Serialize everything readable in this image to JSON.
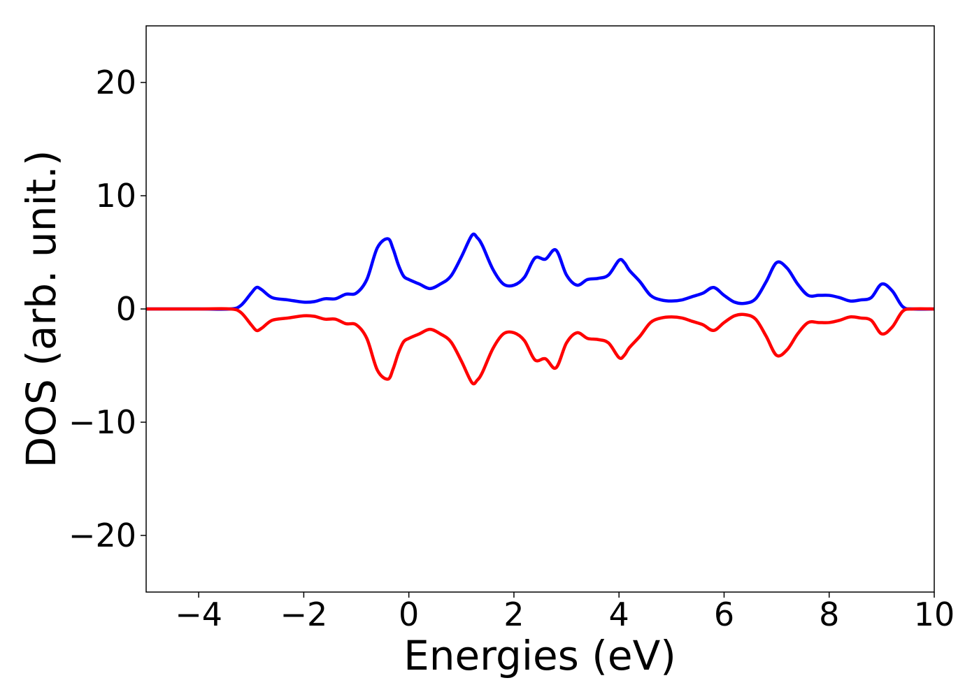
{
  "chart_data": {
    "type": "line",
    "title": "",
    "xlabel": "Energies (eV)",
    "ylabel": "DOS (arb. unit.)",
    "xlim": [
      -5,
      10
    ],
    "ylim": [
      -25,
      25
    ],
    "xticks": [
      -4,
      -2,
      0,
      2,
      4,
      6,
      8,
      10
    ],
    "xtick_labels": [
      "−4",
      "−2",
      "0",
      "2",
      "4",
      "6",
      "8",
      "10"
    ],
    "yticks": [
      -20,
      -10,
      0,
      10,
      20
    ],
    "ytick_labels": [
      "−20",
      "−10",
      "0",
      "10",
      "20"
    ],
    "grid": false,
    "legend": "none",
    "x": [
      -5.0,
      -4.0,
      -3.4,
      -3.2,
      -3.0,
      -2.9,
      -2.8,
      -2.6,
      -2.3,
      -2.0,
      -1.8,
      -1.6,
      -1.4,
      -1.2,
      -1.0,
      -0.8,
      -0.6,
      -0.4,
      -0.3,
      -0.2,
      -0.1,
      0.0,
      0.2,
      0.4,
      0.6,
      0.8,
      1.0,
      1.2,
      1.3,
      1.4,
      1.6,
      1.8,
      2.0,
      2.2,
      2.4,
      2.6,
      2.8,
      3.0,
      3.2,
      3.4,
      3.6,
      3.8,
      4.0,
      4.1,
      4.2,
      4.4,
      4.6,
      4.8,
      5.0,
      5.2,
      5.4,
      5.6,
      5.8,
      6.0,
      6.2,
      6.4,
      6.6,
      6.8,
      7.0,
      7.2,
      7.4,
      7.6,
      7.8,
      8.0,
      8.2,
      8.4,
      8.6,
      8.8,
      9.0,
      9.2,
      9.4,
      9.6,
      10.0
    ],
    "series": [
      {
        "color": "#0000ff",
        "values": [
          0.0,
          0.0,
          0.0,
          0.3,
          1.4,
          1.9,
          1.7,
          1.0,
          0.8,
          0.6,
          0.65,
          0.9,
          0.9,
          1.3,
          1.4,
          2.6,
          5.4,
          6.2,
          5.3,
          3.9,
          2.9,
          2.6,
          2.2,
          1.8,
          2.2,
          2.9,
          4.6,
          6.5,
          6.3,
          5.6,
          3.5,
          2.2,
          2.1,
          2.8,
          4.5,
          4.4,
          5.2,
          3.0,
          2.1,
          2.6,
          2.7,
          3.0,
          4.3,
          4.1,
          3.4,
          2.4,
          1.2,
          0.8,
          0.7,
          0.8,
          1.1,
          1.4,
          1.9,
          1.2,
          0.6,
          0.5,
          0.9,
          2.4,
          4.1,
          3.6,
          2.2,
          1.2,
          1.2,
          1.2,
          1.0,
          0.7,
          0.8,
          1.0,
          2.2,
          1.6,
          0.2,
          0.0,
          0.0
        ]
      },
      {
        "color": "#ff0000",
        "values": [
          0.0,
          0.0,
          0.0,
          -0.3,
          -1.4,
          -1.9,
          -1.7,
          -1.0,
          -0.8,
          -0.6,
          -0.65,
          -0.9,
          -0.9,
          -1.3,
          -1.4,
          -2.6,
          -5.4,
          -6.2,
          -5.3,
          -3.9,
          -2.9,
          -2.6,
          -2.2,
          -1.8,
          -2.2,
          -2.9,
          -4.6,
          -6.5,
          -6.3,
          -5.6,
          -3.5,
          -2.2,
          -2.1,
          -2.8,
          -4.5,
          -4.4,
          -5.2,
          -3.0,
          -2.1,
          -2.6,
          -2.7,
          -3.0,
          -4.3,
          -4.1,
          -3.4,
          -2.4,
          -1.2,
          -0.8,
          -0.7,
          -0.8,
          -1.1,
          -1.4,
          -1.9,
          -1.2,
          -0.6,
          -0.5,
          -0.9,
          -2.4,
          -4.1,
          -3.6,
          -2.2,
          -1.2,
          -1.2,
          -1.2,
          -1.0,
          -0.7,
          -0.8,
          -1.0,
          -2.2,
          -1.6,
          -0.2,
          0.0,
          0.0
        ]
      }
    ]
  }
}
